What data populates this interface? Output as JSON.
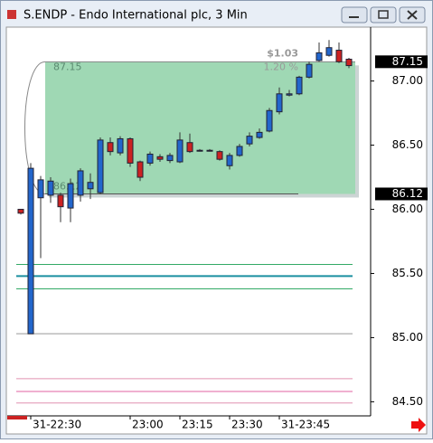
{
  "window_title": "S.ENDP - Endo International plc, 3 Min",
  "chart_data": {
    "type": "candlestick",
    "categories": [
      null,
      "31-22:30",
      null,
      null,
      null,
      null,
      null,
      null,
      null,
      null,
      null,
      "23:00",
      null,
      null,
      null,
      null,
      "23:15",
      null,
      null,
      null,
      null,
      "23:30",
      null,
      null,
      null,
      null,
      "31-23:45",
      null,
      null,
      null,
      null,
      null,
      null,
      null
    ],
    "open": [
      86.0,
      85.03,
      86.09,
      86.11,
      86.11,
      86.01,
      86.11,
      86.16,
      86.13,
      86.52,
      86.44,
      86.55,
      86.37,
      86.36,
      86.41,
      86.38,
      86.37,
      86.52,
      86.46,
      86.46,
      86.45,
      86.34,
      86.42,
      86.51,
      86.56,
      86.61,
      86.76,
      86.89,
      86.9,
      87.03,
      87.16,
      87.2,
      87.24,
      87.17
    ],
    "high": [
      86.0,
      86.36,
      86.26,
      86.25,
      86.13,
      86.24,
      86.32,
      86.28,
      86.56,
      86.56,
      86.57,
      86.56,
      86.38,
      86.45,
      86.43,
      86.44,
      86.6,
      86.59,
      86.47,
      86.47,
      86.46,
      86.44,
      86.51,
      86.6,
      86.63,
      86.79,
      86.95,
      86.93,
      87.04,
      87.15,
      87.3,
      87.32,
      87.3,
      87.18
    ],
    "low": [
      85.96,
      85.03,
      85.62,
      86.05,
      85.9,
      85.9,
      86.06,
      86.08,
      86.12,
      86.42,
      86.42,
      86.33,
      86.22,
      86.34,
      86.37,
      86.36,
      86.36,
      86.44,
      86.45,
      86.45,
      86.38,
      86.31,
      86.41,
      86.49,
      86.55,
      86.6,
      86.74,
      86.88,
      86.89,
      87.02,
      87.15,
      87.19,
      87.14,
      87.1
    ],
    "close": [
      85.97,
      86.32,
      86.23,
      86.22,
      86.02,
      86.2,
      86.3,
      86.21,
      86.54,
      86.45,
      86.55,
      86.36,
      86.25,
      86.43,
      86.39,
      86.42,
      86.54,
      86.45,
      86.46,
      86.46,
      86.39,
      86.42,
      86.49,
      86.57,
      86.6,
      86.77,
      86.9,
      86.9,
      87.03,
      87.13,
      87.22,
      87.26,
      87.15,
      87.12
    ],
    "up_color": "#2266cc",
    "down_color": "#cc2222",
    "ylim": [
      84.39,
      87.42
    ],
    "yticks": [
      {
        "value": 84.5,
        "label": "84.50"
      },
      {
        "value": 85,
        "label": "85.00"
      },
      {
        "value": 85.5,
        "label": "85.50"
      },
      {
        "value": 86,
        "label": "86.00"
      },
      {
        "value": 86.5,
        "label": "86.50"
      },
      {
        "value": 87,
        "label": "87.00"
      }
    ],
    "levels": [
      {
        "value": 85.57,
        "color": "#33aa66"
      },
      {
        "value": 85.48,
        "color": "#1a8fa0"
      },
      {
        "value": 85.38,
        "color": "#33aa66"
      },
      {
        "value": 85.03,
        "color": "#999999"
      },
      {
        "value": 84.68,
        "color": "#e090b0"
      },
      {
        "value": 84.58,
        "color": "#e060a0"
      },
      {
        "value": 84.49,
        "color": "#e090b0"
      }
    ],
    "measure": {
      "high": 87.15,
      "low": 86.12,
      "change": "$1.03",
      "percent": "1.20 %"
    }
  }
}
